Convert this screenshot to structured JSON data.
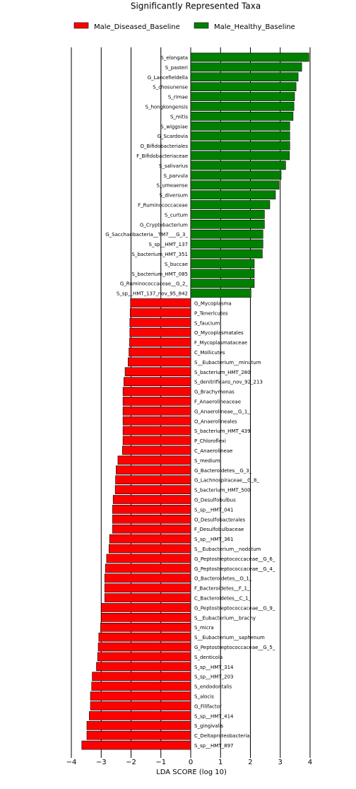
{
  "chart_data": {
    "type": "barh",
    "title": "Significantly Represented Taxa",
    "xlabel": "LDA SCORE (log 10)",
    "categories": [
      "S_elongata",
      "S_pasteri",
      "G_Lancefieldella",
      "S_chosunense",
      "S_rimae",
      "S_hongkongensis",
      "S_mitis",
      "S_wiggsiae",
      "G_Scardovia",
      "O_Bifidobacteriales",
      "F_Bifidobacteriaceae",
      "S_salivarius",
      "S_parvula",
      "S_umeaense",
      "S_diversum",
      "F_Ruminococcaceae",
      "S_curtum",
      "G_Cryptobacterium",
      "G_Saccharibacteria__TM7___G_3_",
      "S_sp__HMT_137",
      "S_bacterium_HMT_351",
      "S_buccae",
      "S_bacterium_HMT_085",
      "G_Ruminococcaceae__G_2_",
      "S_sp__HMT_137_nov_95_842",
      "G_Mycoplasma",
      "P_Tenericutes",
      "S_faucium",
      "O_Mycoplasmatales",
      "F_Mycoplasmataceae",
      "C_Mollicutes",
      "S__Eubacterium__minutum",
      "S_bacterium_HMT_280",
      "S_denitrificans_nov_92_213",
      "G_Brachymonas",
      "F_Anaerolineaceae",
      "G_Anaerolineae__G_1_",
      "O_Anaerolineales",
      "S_bacterium_HMT_439",
      "P_Chloroflexi",
      "C_Anaerolineae",
      "S_medium",
      "G_Bacteroidetes__G_3_",
      "G_Lachnospiraceae__G_8_",
      "S_bacterium_HMT_500",
      "G_Desulfobulbus",
      "S_sp__HMT_041",
      "O_Desulfobacterales",
      "F_Desulfobulbaceae",
      "S_sp__HMT_361",
      "S__Eubacterium__nodatum",
      "G_Peptostreptococcaceae__G_6_",
      "G_Peptostreptococcaceae__G_4_",
      "O_Bacteroidetes__O_1_",
      "F_Bacteroidetes__F_1_",
      "C_Bacteroidetes__C_1_",
      "G_Peptostreptococcaceae__G_9_",
      "S__Eubacterium__brachy",
      "S_micra",
      "S__Eubacterium__saphenum",
      "G_Peptostreptococcaceae__G_5_",
      "S_denticola",
      "S_sp__HMT_314",
      "S_sp__HMT_203",
      "S_endodontalis",
      "S_alocis",
      "G_Filifactor",
      "S_sp__HMT_414",
      "S_gingivalis",
      "C_Deltaproteobacteria",
      "S_sp__HMT_897"
    ],
    "series": [
      {
        "name": "Male_Diseased_Baseline",
        "color": "#ff0000",
        "values": [
          null,
          null,
          null,
          null,
          null,
          null,
          null,
          null,
          null,
          null,
          null,
          null,
          null,
          null,
          null,
          null,
          null,
          null,
          null,
          null,
          null,
          null,
          null,
          null,
          null,
          -2.02,
          -2.03,
          -2.04,
          -2.04,
          -2.05,
          -2.07,
          -2.1,
          -2.2,
          -2.24,
          -2.27,
          -2.27,
          -2.27,
          -2.27,
          -2.27,
          -2.27,
          -2.29,
          -2.44,
          -2.5,
          -2.52,
          -2.53,
          -2.6,
          -2.62,
          -2.62,
          -2.62,
          -2.72,
          -2.74,
          -2.82,
          -2.86,
          -2.88,
          -2.88,
          -2.88,
          -3.0,
          -3.0,
          -3.02,
          -3.08,
          -3.1,
          -3.12,
          -3.16,
          -3.3,
          -3.32,
          -3.36,
          -3.36,
          -3.4,
          -3.48,
          -3.48,
          -3.65
        ]
      },
      {
        "name": "Male_Healthy_Baseline",
        "color": "#008000",
        "values": [
          3.96,
          3.72,
          3.6,
          3.53,
          3.48,
          3.46,
          3.43,
          3.32,
          3.32,
          3.32,
          3.31,
          3.18,
          3.03,
          2.96,
          2.84,
          2.65,
          2.47,
          2.47,
          2.42,
          2.42,
          2.4,
          2.13,
          2.13,
          2.13,
          2.02,
          null,
          null,
          null,
          null,
          null,
          null,
          null,
          null,
          null,
          null,
          null,
          null,
          null,
          null,
          null,
          null,
          null,
          null,
          null,
          null,
          null,
          null,
          null,
          null,
          null,
          null,
          null,
          null,
          null,
          null,
          null,
          null,
          null,
          null,
          null,
          null,
          null,
          null,
          null,
          null,
          null,
          null,
          null,
          null,
          null,
          null
        ]
      }
    ],
    "xlim": [
      -4.4,
      4.4
    ],
    "xticks": [
      {
        "value": -4,
        "label": "−4"
      },
      {
        "value": -3,
        "label": "−3"
      },
      {
        "value": -2,
        "label": "−2"
      },
      {
        "value": -1,
        "label": "−1"
      },
      0,
      1,
      2,
      3,
      4
    ],
    "grid": true
  }
}
